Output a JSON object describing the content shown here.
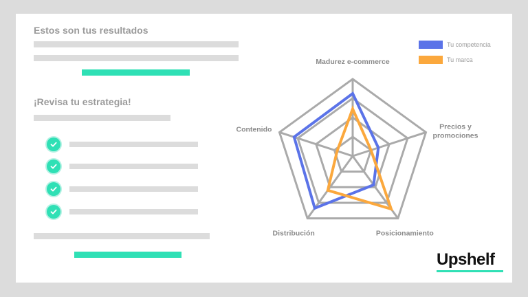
{
  "colors": {
    "background": "#dcdcdc",
    "card": "#ffffff",
    "accent": "#2fe0b5",
    "competitor": "#5b73e8",
    "brand": "#fba83d",
    "grid": "#aaaaaa",
    "placeholder": "#dcdcdc"
  },
  "left_panel": {
    "title": "Estos son tus resultados",
    "subtitle": "¡Revisa tu estrategia!",
    "checklist_count": 4
  },
  "logo": {
    "text": "Upshelf"
  },
  "chart_data": {
    "type": "radar",
    "axes": [
      "Madurez e-commerce",
      "Precios y promociones",
      "Posicionamiento",
      "Distribución",
      "Contenido"
    ],
    "rings": 4,
    "max": 4,
    "series": [
      {
        "name": "Tu competencia",
        "color": "#5b73e8",
        "values": [
          3.25,
          1.4,
          1.85,
          3.35,
          3.2
        ]
      },
      {
        "name": "Tu marca",
        "color": "#fba83d",
        "values": [
          2.45,
          1.0,
          3.4,
          2.2,
          0.85
        ]
      }
    ],
    "legend_position": "top-right"
  }
}
